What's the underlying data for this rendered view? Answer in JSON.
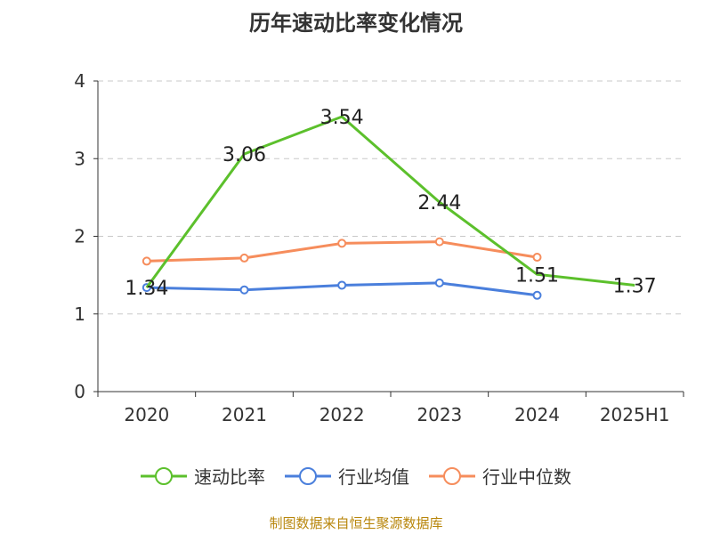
{
  "chart_data": {
    "type": "line",
    "title": "历年速动比率变化情况",
    "categories": [
      "2020",
      "2021",
      "2022",
      "2023",
      "2024",
      "2025H1"
    ],
    "ylim": [
      0,
      4
    ],
    "yticks": [
      0,
      1,
      2,
      3,
      4
    ],
    "grid": true,
    "legend_position": "bottom",
    "series": [
      {
        "name": "速动比率",
        "color": "#5cc02c",
        "values": [
          1.34,
          3.06,
          3.54,
          2.44,
          1.51,
          1.37
        ],
        "labels": [
          "1.34",
          "3.06",
          "3.54",
          "2.44",
          "1.51",
          "1.37"
        ],
        "show_markers": false
      },
      {
        "name": "行业均值",
        "color": "#4a7fdc",
        "values": [
          1.34,
          1.31,
          1.37,
          1.4,
          1.24,
          null
        ],
        "show_markers": true
      },
      {
        "name": "行业中位数",
        "color": "#f68d5c",
        "values": [
          1.68,
          1.72,
          1.91,
          1.93,
          1.73,
          null
        ],
        "show_markers": true
      }
    ]
  },
  "source_text": "制图数据来自恒生聚源数据库"
}
